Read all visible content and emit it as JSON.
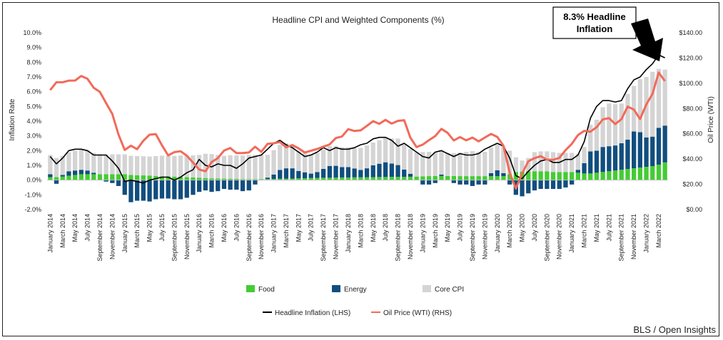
{
  "chart_data": {
    "type": "bar",
    "title": "Headline CPI and Weighted Components (%)",
    "ylabel": "Inflation Rate",
    "y2label": "Oil Price (WTI)",
    "ylim": [
      -2,
      10
    ],
    "y2lim": [
      0,
      140
    ],
    "yticks": [
      "-2.0%",
      "-1.0%",
      "0.0%",
      "1.0%",
      "2.0%",
      "3.0%",
      "4.0%",
      "5.0%",
      "6.0%",
      "7.0%",
      "8.0%",
      "9.0%",
      "10.0%"
    ],
    "y2ticks": [
      "$0.00",
      "$20.00",
      "$40.00",
      "$60.00",
      "$80.00",
      "$100.00",
      "$120.00",
      "$140.00"
    ],
    "categories": [
      "Jan 2014",
      "Feb 2014",
      "Mar 2014",
      "Apr 2014",
      "May 2014",
      "Jun 2014",
      "Jul 2014",
      "Aug 2014",
      "Sep 2014",
      "Oct 2014",
      "Nov 2014",
      "Dec 2014",
      "Jan 2015",
      "Feb 2015",
      "Mar 2015",
      "Apr 2015",
      "May 2015",
      "Jun 2015",
      "Jul 2015",
      "Aug 2015",
      "Sep 2015",
      "Oct 2015",
      "Nov 2015",
      "Dec 2015",
      "Jan 2016",
      "Feb 2016",
      "Mar 2016",
      "Apr 2016",
      "May 2016",
      "Jun 2016",
      "Jul 2016",
      "Aug 2016",
      "Sep 2016",
      "Oct 2016",
      "Nov 2016",
      "Dec 2016",
      "Jan 2017",
      "Feb 2017",
      "Mar 2017",
      "Apr 2017",
      "May 2017",
      "Jun 2017",
      "Jul 2017",
      "Aug 2017",
      "Sep 2017",
      "Oct 2017",
      "Nov 2017",
      "Dec 2017",
      "Jan 2018",
      "Feb 2018",
      "Mar 2018",
      "Apr 2018",
      "May 2018",
      "Jun 2018",
      "Jul 2018",
      "Aug 2018",
      "Sep 2018",
      "Oct 2018",
      "Nov 2018",
      "Dec 2018",
      "Jan 2019",
      "Feb 2019",
      "Mar 2019",
      "Apr 2019",
      "May 2019",
      "Jun 2019",
      "Jul 2019",
      "Aug 2019",
      "Sep 2019",
      "Oct 2019",
      "Nov 2019",
      "Dec 2019",
      "Jan 2020",
      "Feb 2020",
      "Mar 2020",
      "Apr 2020",
      "May 2020",
      "Jun 2020",
      "Jul 2020",
      "Aug 2020",
      "Sep 2020",
      "Oct 2020",
      "Nov 2020",
      "Dec 2020",
      "Jan 2021",
      "Feb 2021",
      "Mar 2021",
      "Apr 2021",
      "May 2021",
      "Jun 2021",
      "Jul 2021",
      "Aug 2021",
      "Sep 2021",
      "Oct 2021",
      "Nov 2021",
      "Dec 2021",
      "Jan 2022",
      "Feb 2022",
      "Mar 2022",
      "Apr 2022"
    ],
    "x_tick_labels": [
      "January 2014",
      "March 2014",
      "May 2014",
      "July 2014",
      "September 2014",
      "November 2014",
      "January 2015",
      "March 2015",
      "May 2015",
      "July 2015",
      "September 2015",
      "November 2015",
      "January 2016",
      "March 2016",
      "May 2016",
      "July 2016",
      "September 2016",
      "November 2016",
      "January 2017",
      "March 2017",
      "May 2017",
      "July 2017",
      "September 2017",
      "November 2017",
      "January 2018",
      "March 2018",
      "May 2018",
      "July 2018",
      "September 2018",
      "November 2018",
      "January 2019",
      "March 2019",
      "May 2019",
      "July 2019",
      "September 2019",
      "November 2019",
      "January 2020",
      "March 2020",
      "May 2020",
      "July 2020",
      "September 2020",
      "November 2020",
      "January 2021",
      "March 2021",
      "May 2021",
      "July 2021",
      "September 2021",
      "November 2021",
      "January 2022",
      "March 2022"
    ],
    "series": [
      {
        "name": "Food",
        "color": "#44cc33",
        "kind": "stacked-bar",
        "values": [
          0.2,
          0.2,
          0.25,
          0.3,
          0.35,
          0.4,
          0.4,
          0.4,
          0.4,
          0.4,
          0.4,
          0.4,
          0.4,
          0.35,
          0.33,
          0.32,
          0.3,
          0.28,
          0.26,
          0.25,
          0.24,
          0.22,
          0.2,
          0.18,
          0.16,
          0.14,
          0.12,
          0.11,
          0.1,
          0.09,
          0.08,
          0.07,
          0.06,
          0.06,
          0.06,
          0.07,
          0.08,
          0.09,
          0.1,
          0.1,
          0.12,
          0.13,
          0.14,
          0.15,
          0.16,
          0.16,
          0.17,
          0.18,
          0.18,
          0.19,
          0.19,
          0.2,
          0.2,
          0.21,
          0.21,
          0.22,
          0.22,
          0.22,
          0.23,
          0.24,
          0.26,
          0.27,
          0.28,
          0.28,
          0.28,
          0.28,
          0.27,
          0.27,
          0.27,
          0.27,
          0.27,
          0.27,
          0.27,
          0.27,
          0.4,
          0.55,
          0.58,
          0.6,
          0.6,
          0.6,
          0.6,
          0.55,
          0.55,
          0.55,
          0.55,
          0.5,
          0.45,
          0.45,
          0.5,
          0.55,
          0.6,
          0.65,
          0.7,
          0.75,
          0.8,
          0.85,
          0.9,
          0.95,
          1.05,
          1.2
        ]
      },
      {
        "name": "Energy",
        "color": "#114e7e",
        "kind": "stacked-bar",
        "values": [
          0.2,
          -0.25,
          0.1,
          0.3,
          0.3,
          0.3,
          0.25,
          0.1,
          0.0,
          -0.1,
          -0.2,
          -0.4,
          -1.0,
          -1.5,
          -1.4,
          -1.4,
          -1.45,
          -1.3,
          -1.25,
          -1.25,
          -1.3,
          -1.3,
          -1.2,
          -1.0,
          -0.8,
          -0.7,
          -0.8,
          -0.75,
          -0.6,
          -0.65,
          -0.65,
          -0.75,
          -0.7,
          -0.3,
          0.0,
          0.1,
          0.3,
          0.6,
          0.7,
          0.7,
          0.5,
          0.4,
          0.3,
          0.4,
          0.6,
          0.8,
          0.8,
          0.7,
          0.7,
          0.6,
          0.5,
          0.6,
          0.8,
          0.9,
          1.0,
          0.9,
          0.8,
          0.5,
          0.2,
          0.0,
          -0.3,
          -0.3,
          -0.2,
          0.1,
          0.0,
          -0.2,
          -0.3,
          -0.3,
          -0.4,
          -0.3,
          -0.3,
          0.2,
          0.4,
          0.2,
          -0.3,
          -1.0,
          -1.1,
          -0.9,
          -0.7,
          -0.6,
          -0.6,
          -0.6,
          -0.6,
          -0.5,
          -0.3,
          0.2,
          0.7,
          1.5,
          1.5,
          1.7,
          1.7,
          1.7,
          1.8,
          2.0,
          2.5,
          2.4,
          2.0,
          2.0,
          2.5,
          2.5
        ]
      },
      {
        "name": "Core CPI",
        "color": "#d4d4d4",
        "kind": "stacked-bar",
        "values": [
          1.3,
          1.3,
          1.3,
          1.3,
          1.35,
          1.35,
          1.35,
          1.35,
          1.35,
          1.35,
          1.35,
          1.35,
          1.35,
          1.3,
          1.3,
          1.3,
          1.3,
          1.35,
          1.4,
          1.4,
          1.4,
          1.45,
          1.45,
          1.5,
          1.55,
          1.65,
          1.65,
          1.6,
          1.55,
          1.6,
          1.6,
          1.6,
          1.65,
          1.65,
          1.65,
          1.55,
          1.65,
          1.7,
          1.7,
          1.55,
          1.35,
          1.35,
          1.3,
          1.3,
          1.3,
          1.35,
          1.35,
          1.35,
          1.35,
          1.4,
          1.5,
          1.55,
          1.55,
          1.6,
          1.7,
          1.7,
          1.8,
          1.7,
          1.7,
          1.65,
          1.65,
          1.65,
          1.6,
          1.65,
          1.55,
          1.55,
          1.6,
          1.65,
          1.7,
          1.65,
          1.65,
          1.75,
          1.75,
          1.8,
          1.6,
          1.0,
          0.75,
          0.9,
          1.3,
          1.35,
          1.35,
          1.35,
          1.3,
          1.3,
          1.3,
          1.1,
          1.1,
          1.8,
          2.1,
          2.7,
          2.9,
          2.8,
          2.7,
          3.1,
          3.1,
          3.6,
          4.1,
          4.4,
          4.0,
          3.8
        ]
      },
      {
        "name": "Headline Inflation (LHS)",
        "color": "#000000",
        "kind": "line-left",
        "values": [
          1.6,
          1.1,
          1.5,
          2.0,
          2.1,
          2.1,
          2.0,
          1.7,
          1.7,
          1.7,
          1.3,
          0.8,
          -0.1,
          0.0,
          -0.1,
          -0.2,
          0.0,
          0.1,
          0.2,
          0.2,
          0.0,
          0.2,
          0.5,
          0.7,
          1.4,
          1.0,
          0.9,
          1.1,
          1.0,
          1.0,
          0.8,
          1.1,
          1.5,
          1.6,
          1.7,
          2.1,
          2.5,
          2.7,
          2.4,
          2.2,
          1.9,
          1.6,
          1.7,
          1.9,
          2.2,
          2.0,
          2.2,
          2.1,
          2.1,
          2.2,
          2.4,
          2.5,
          2.8,
          2.9,
          2.9,
          2.7,
          2.3,
          2.5,
          2.2,
          1.9,
          1.6,
          1.5,
          1.9,
          2.0,
          1.8,
          1.6,
          1.8,
          1.7,
          1.7,
          1.8,
          2.1,
          2.3,
          2.5,
          2.3,
          1.5,
          0.3,
          0.1,
          0.6,
          1.0,
          1.3,
          1.4,
          1.2,
          1.2,
          1.4,
          1.4,
          1.7,
          2.6,
          4.2,
          5.0,
          5.4,
          5.4,
          5.3,
          5.4,
          6.2,
          6.8,
          7.0,
          7.5,
          7.9,
          8.5,
          8.3
        ]
      },
      {
        "name": "Oil Price (WTI) (RHS)",
        "color": "#f26a5a",
        "kind": "line-right",
        "values": [
          94.6,
          100.8,
          100.8,
          102.1,
          102.2,
          105.8,
          103.6,
          96.5,
          93.2,
          84.4,
          75.8,
          59.3,
          47.2,
          50.6,
          47.8,
          54.5,
          59.3,
          59.8,
          50.9,
          42.9,
          45.5,
          46.2,
          42.7,
          37.2,
          31.7,
          30.3,
          37.6,
          40.8,
          46.7,
          48.8,
          44.7,
          44.7,
          45.2,
          49.8,
          45.7,
          52.0,
          52.5,
          53.5,
          49.3,
          51.1,
          48.5,
          45.2,
          46.6,
          48.0,
          49.8,
          51.6,
          56.6,
          57.9,
          63.7,
          62.2,
          62.7,
          66.3,
          70.0,
          67.9,
          71.0,
          68.1,
          70.2,
          70.8,
          57.0,
          49.5,
          51.4,
          54.9,
          58.2,
          63.9,
          60.8,
          54.7,
          57.4,
          54.8,
          57.0,
          54.0,
          57.0,
          59.9,
          57.5,
          50.5,
          29.2,
          16.6,
          28.5,
          38.3,
          40.7,
          42.3,
          39.6,
          39.4,
          40.9,
          47.0,
          52.0,
          59.0,
          62.3,
          61.7,
          65.2,
          71.4,
          72.4,
          67.7,
          71.6,
          81.5,
          79.2,
          71.7,
          83.2,
          91.6,
          108.5,
          101.8
        ]
      }
    ],
    "legend": {
      "items": [
        "Food",
        "Energy",
        "Core CPI",
        "Headline Inflation (LHS)",
        "Oil Price (WTI) (RHS)"
      ],
      "placement": "bottom"
    },
    "annotation": {
      "line1": "8.3% Headline",
      "line2": "Inflation"
    },
    "grid": false
  },
  "source": "BLS / Open Insights"
}
